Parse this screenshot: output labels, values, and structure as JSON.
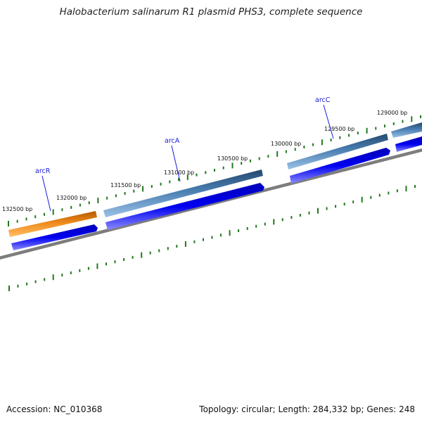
{
  "title": "Halobacterium salinarum R1 plasmid PHS3, complete sequence",
  "footer": {
    "accession": "Accession: NC_010368",
    "summary": "Topology: circular; Length: 284,332 bp; Genes: 248"
  },
  "ruler": [
    "132500 bp",
    "132000 bp",
    "131500 bp",
    "131000 bp",
    "130500 bp",
    "130000 bp",
    "129500 bp",
    "129000 bp"
  ],
  "genes": [
    "arcR",
    "arcA",
    "arcC"
  ],
  "colors": {
    "orange_feature": "#f08a1c",
    "steel_feature": "#3e6f9c",
    "blue_feature": "#0000e0",
    "backbone": "#808080",
    "tick": "#1f7a1f",
    "gene_label": "#1a1adb"
  }
}
